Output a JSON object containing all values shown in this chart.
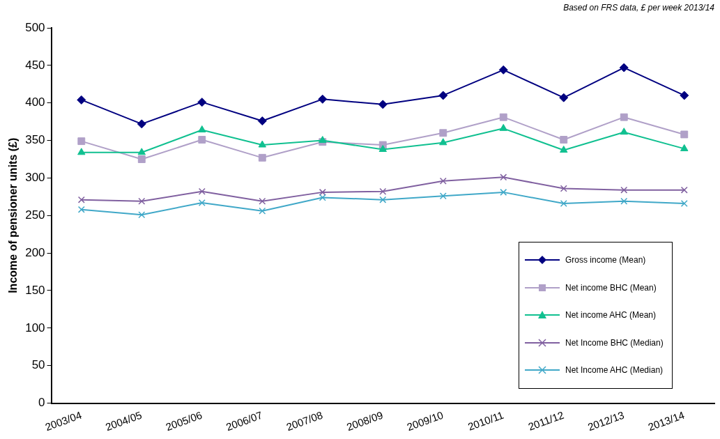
{
  "chart_data": {
    "type": "line",
    "ylabel": "Income of pensioner units (£)",
    "annotations": [
      "Based on FRS data, £ per week 2013/14"
    ],
    "categories": [
      "2003/04",
      "2004/05",
      "2005/06",
      "2006/07",
      "2007/08",
      "2008/09",
      "2009/10",
      "2010/11",
      "2011/12",
      "2012/13",
      "2013/14"
    ],
    "series": [
      {
        "name": "Gross income  (Mean)",
        "color": "#000080",
        "marker": "diamond",
        "values": [
          404,
          372,
          401,
          376,
          405,
          398,
          410,
          444,
          407,
          447,
          410
        ]
      },
      {
        "name": "Net income  BHC  (Mean)",
        "color": "#b0a0c8",
        "marker": "square",
        "values": [
          349,
          325,
          351,
          327,
          348,
          344,
          360,
          381,
          351,
          381,
          358
        ]
      },
      {
        "name": "Net income  AHC  (Mean)",
        "color": "#10c090",
        "marker": "triangle",
        "values": [
          334,
          334,
          364,
          344,
          350,
          338,
          347,
          366,
          337,
          361,
          339
        ]
      },
      {
        "name": "Net Income  BHC (Median)",
        "color": "#8060a0",
        "marker": "cross",
        "values": [
          271,
          269,
          282,
          269,
          281,
          282,
          296,
          301,
          286,
          284,
          284
        ]
      },
      {
        "name": "Net Income  AHC (Median)",
        "color": "#40a8c8",
        "marker": "cross",
        "values": [
          258,
          251,
          267,
          256,
          274,
          271,
          276,
          281,
          266,
          269,
          266
        ]
      }
    ],
    "ylim": [
      0,
      500
    ],
    "yticks": [
      0,
      50,
      100,
      150,
      200,
      250,
      300,
      350,
      400,
      450,
      500
    ],
    "grid": false,
    "legend": "bottom right",
    "line_style": "solid"
  }
}
